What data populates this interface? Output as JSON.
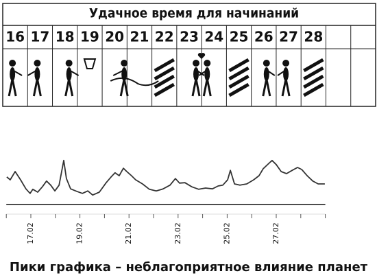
{
  "table": {
    "title": "Удачное время для начинаний",
    "days": [
      16,
      17,
      18,
      19,
      20,
      21,
      22,
      23,
      24,
      25,
      26,
      27,
      28
    ]
  },
  "chart_data": {
    "type": "line",
    "x": [
      16.02,
      16.16,
      16.36,
      16.58,
      16.8,
      16.97,
      17.08,
      17.28,
      17.47,
      17.64,
      17.81,
      17.98,
      18.15,
      18.34,
      18.45,
      18.62,
      18.87,
      19.1,
      19.32,
      19.52,
      19.79,
      20.07,
      20.27,
      20.43,
      20.6,
      20.77,
      20.91,
      21.1,
      21.27,
      21.55,
      21.83,
      22.11,
      22.39,
      22.67,
      22.89,
      23.06,
      23.28,
      23.56,
      23.84,
      24.12,
      24.4,
      24.63,
      24.82,
      25.02,
      25.13,
      25.3,
      25.52,
      25.8,
      26.08,
      26.3,
      26.47,
      26.7,
      26.83,
      27.0,
      27.2,
      27.42,
      27.65,
      27.87,
      28.04,
      28.26,
      28.49,
      28.71,
      28.98
    ],
    "values": [
      6.7,
      6.0,
      8.0,
      6.0,
      3.8,
      2.7,
      3.7,
      3.0,
      4.3,
      5.7,
      4.7,
      3.3,
      4.7,
      10.7,
      6.3,
      3.8,
      3.2,
      2.7,
      3.3,
      2.3,
      3.0,
      5.3,
      6.7,
      7.7,
      7.0,
      8.8,
      8.0,
      7.0,
      6.0,
      5.0,
      3.7,
      3.3,
      3.8,
      4.7,
      6.3,
      5.2,
      5.3,
      4.3,
      3.7,
      4.0,
      3.8,
      4.5,
      4.7,
      6.0,
      8.3,
      5.0,
      4.7,
      5.0,
      6.0,
      7.0,
      8.7,
      10.0,
      10.7,
      9.7,
      8.0,
      7.5,
      8.3,
      9.0,
      8.5,
      7.0,
      5.7,
      5.0,
      5.0
    ],
    "color": "#333333",
    "xlim": [
      16,
      29
    ],
    "ylim": [
      0,
      11
    ],
    "xticks": [
      {
        "value": 16,
        "label": null
      },
      {
        "value": 17,
        "label": "17.02"
      },
      {
        "value": 18,
        "label": null
      },
      {
        "value": 19,
        "label": "19.02"
      },
      {
        "value": 20,
        "label": null
      },
      {
        "value": 21,
        "label": "21.02"
      },
      {
        "value": 22,
        "label": null
      },
      {
        "value": 23,
        "label": "23.02"
      },
      {
        "value": 24,
        "label": null
      },
      {
        "value": 25,
        "label": "25.02"
      },
      {
        "value": 26,
        "label": null
      },
      {
        "value": 27,
        "label": "27.02"
      },
      {
        "value": 28,
        "label": null
      },
      {
        "value": 29,
        "label": null
      }
    ]
  },
  "caption": "Пики графика – неблагоприятное влияние планет"
}
